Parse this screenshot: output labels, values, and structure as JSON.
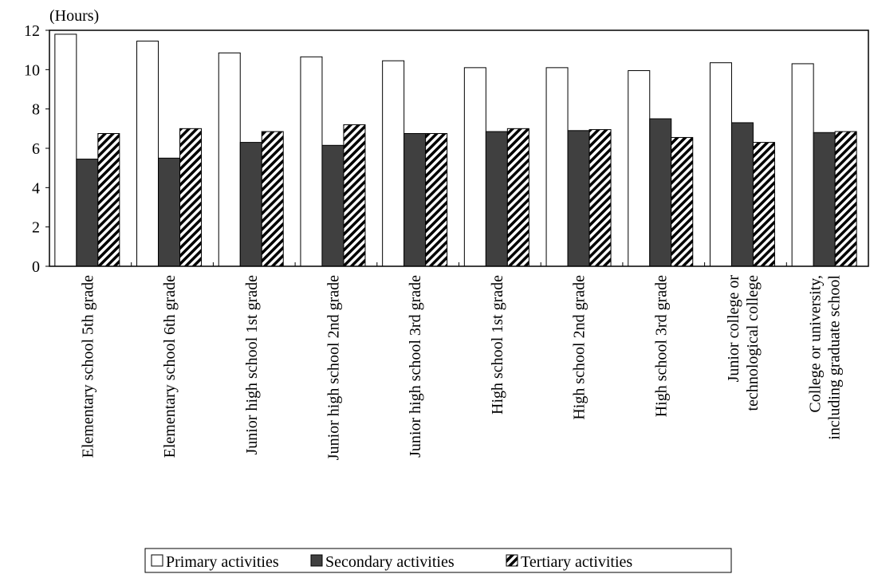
{
  "chart_data": {
    "type": "bar",
    "y_label": "(Hours)",
    "categories": [
      "Elementary school 5th grade",
      "Elementary school  6th grade",
      "Junior high school 1st grade",
      "Junior high school 2nd grade",
      "Junior high school 3rd grade",
      "High school 1st grade",
      "High school 2nd grade",
      "High school 3rd grade",
      "Junior college or\ntechnological college",
      "College or university,\nincluding graduate school"
    ],
    "series": [
      {
        "name": "Primary activities",
        "color": "#ffffff",
        "values": [
          11.8,
          11.45,
          10.85,
          10.65,
          10.45,
          10.1,
          10.1,
          9.95,
          10.35,
          10.3
        ]
      },
      {
        "name": "Secondary activities",
        "color": "#404040",
        "values": [
          5.45,
          5.5,
          6.3,
          6.15,
          6.75,
          6.85,
          6.9,
          7.5,
          7.3,
          6.8
        ]
      },
      {
        "name": "Tertiary activities",
        "color": "hatch",
        "values": [
          6.75,
          7.0,
          6.85,
          7.2,
          6.75,
          7.0,
          6.95,
          6.55,
          6.3,
          6.85
        ]
      }
    ],
    "ylim": [
      0,
      12
    ],
    "yticks": [
      0,
      2,
      4,
      6,
      8,
      10,
      12
    ]
  }
}
